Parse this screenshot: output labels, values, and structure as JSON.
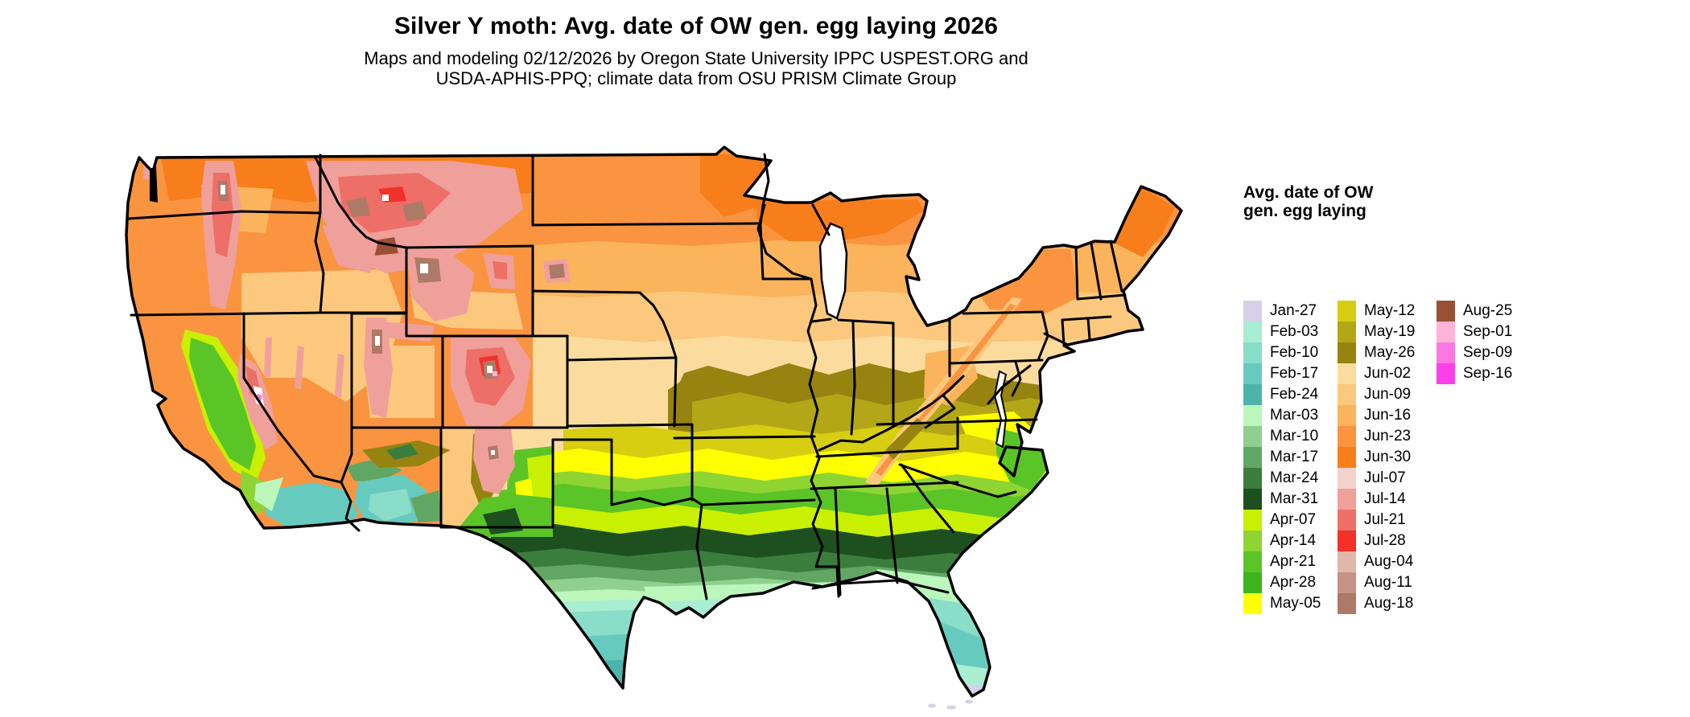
{
  "header": {
    "title": "Silver Y moth: Avg. date of OW gen. egg laying 2026",
    "subtitle_line1": "Maps and modeling 02/12/2026 by Oregon State University IPPC USPEST.ORG and",
    "subtitle_line2": "USDA-APHIS-PPQ; climate data from OSU PRISM Climate Group"
  },
  "legend": {
    "title_line1": "Avg. date of OW",
    "title_line2": "gen. egg laying",
    "columns": [
      [
        {
          "label": "Jan-27",
          "color": "#D8CFE8"
        },
        {
          "label": "Feb-03",
          "color": "#A9EDD3"
        },
        {
          "label": "Feb-10",
          "color": "#8ADDC8"
        },
        {
          "label": "Feb-17",
          "color": "#67CABF"
        },
        {
          "label": "Feb-24",
          "color": "#4DB4AB"
        },
        {
          "label": "Mar-03",
          "color": "#BBF7BB"
        },
        {
          "label": "Mar-10",
          "color": "#8FD08F"
        },
        {
          "label": "Mar-17",
          "color": "#61A763"
        },
        {
          "label": "Mar-24",
          "color": "#3B7D3D"
        },
        {
          "label": "Mar-31",
          "color": "#1D4F1F"
        },
        {
          "label": "Apr-07",
          "color": "#C8F000"
        },
        {
          "label": "Apr-14",
          "color": "#8ED433"
        },
        {
          "label": "Apr-21",
          "color": "#5BC427"
        },
        {
          "label": "Apr-28",
          "color": "#3CB51F"
        },
        {
          "label": "May-05",
          "color": "#FFFF00"
        }
      ],
      [
        {
          "label": "May-12",
          "color": "#D7CE12"
        },
        {
          "label": "May-19",
          "color": "#B3A718"
        },
        {
          "label": "May-26",
          "color": "#97830F"
        },
        {
          "label": "Jun-02",
          "color": "#FCDC9E"
        },
        {
          "label": "Jun-09",
          "color": "#FCC87D"
        },
        {
          "label": "Jun-16",
          "color": "#FBB35C"
        },
        {
          "label": "Jun-23",
          "color": "#FA9440"
        },
        {
          "label": "Jun-30",
          "color": "#F87E1B"
        },
        {
          "label": "Jul-07",
          "color": "#F4D2CE"
        },
        {
          "label": "Jul-14",
          "color": "#F0A09B"
        },
        {
          "label": "Jul-21",
          "color": "#ED6F67"
        },
        {
          "label": "Jul-28",
          "color": "#F23129"
        },
        {
          "label": "Aug-04",
          "color": "#E0B7AB"
        },
        {
          "label": "Aug-11",
          "color": "#C69384"
        },
        {
          "label": "Aug-18",
          "color": "#AD7A67"
        }
      ],
      [
        {
          "label": "Aug-25",
          "color": "#9B4F35"
        },
        {
          "label": "Sep-01",
          "color": "#FFB3D9"
        },
        {
          "label": "Sep-09",
          "color": "#FB78E3"
        },
        {
          "label": "Sep-16",
          "color": "#FB40E9"
        }
      ]
    ]
  },
  "chart_data": {
    "type": "heatmap",
    "title": "Silver Y moth: Avg. date of OW gen. egg laying 2026",
    "legend_title": "Avg. date of OW gen. egg laying",
    "region": "Contiguous United States",
    "classes": [
      "Jan-27",
      "Feb-03",
      "Feb-10",
      "Feb-17",
      "Feb-24",
      "Mar-03",
      "Mar-10",
      "Mar-17",
      "Mar-24",
      "Mar-31",
      "Apr-07",
      "Apr-14",
      "Apr-21",
      "Apr-28",
      "May-05",
      "May-12",
      "May-19",
      "May-26",
      "Jun-02",
      "Jun-09",
      "Jun-16",
      "Jun-23",
      "Jun-30",
      "Jul-07",
      "Jul-14",
      "Jul-21",
      "Jul-28",
      "Aug-04",
      "Aug-11",
      "Aug-18",
      "Aug-25",
      "Sep-01",
      "Sep-09",
      "Sep-16"
    ],
    "pattern": "Earliest egg-laying dates (Jan-Feb, teal/aqua) along the Gulf Coast, south Texas, Florida and southern Arizona/California; March-April greens across the Southeast and southern plains; May olive/yellow through the mid-South; June oranges across the northern tier; July-September pinks/reds/browns at high mountain elevations in the West"
  }
}
